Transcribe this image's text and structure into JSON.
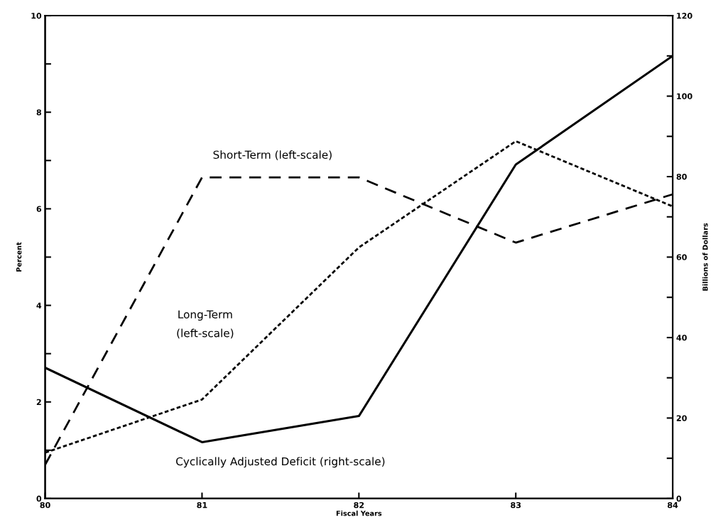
{
  "chart_data": {
    "type": "line",
    "xlabel": "Fiscal Years",
    "ylabel": "Percent",
    "y2label": "Billions of Dollars",
    "categories": [
      "80",
      "81",
      "82",
      "83",
      "84"
    ],
    "series": [
      {
        "name": "Short-Term (left-scale)",
        "color": "#000000",
        "line_style": "dashed",
        "values": [
          0.7,
          6.65,
          6.65,
          5.3,
          6.3
        ]
      },
      {
        "name": "Long-Term\n(left-scale)",
        "color": "#000000",
        "line_style": "dotted",
        "values": [
          0.95,
          2.05,
          5.2,
          7.4,
          6.05
        ]
      },
      {
        "name": "Cyclically Adjusted Deficit (right-scale)",
        "color": "#000000",
        "line_style": "solid",
        "axis": "y2",
        "values": [
          32.5,
          14,
          20.5,
          83,
          110
        ]
      }
    ],
    "ylim": [
      0,
      10
    ],
    "yticks": [
      0,
      {
        "value": 1,
        "label": null
      },
      2,
      {
        "value": 3,
        "label": null
      },
      4,
      {
        "value": 5,
        "label": null
      },
      6,
      {
        "value": 7,
        "label": null
      },
      8,
      {
        "value": 9,
        "label": null
      },
      10
    ],
    "y2lim": [
      0,
      120
    ],
    "y2ticks": [
      0,
      {
        "value": 10,
        "label": null
      },
      20,
      {
        "value": 30,
        "label": null
      },
      40,
      {
        "value": 50,
        "label": null
      },
      60,
      {
        "value": 70,
        "label": null
      },
      80,
      {
        "value": 90,
        "label": null
      },
      100,
      {
        "value": 110,
        "label": null
      },
      120
    ],
    "grid": false,
    "legend": false,
    "marker": "none"
  }
}
